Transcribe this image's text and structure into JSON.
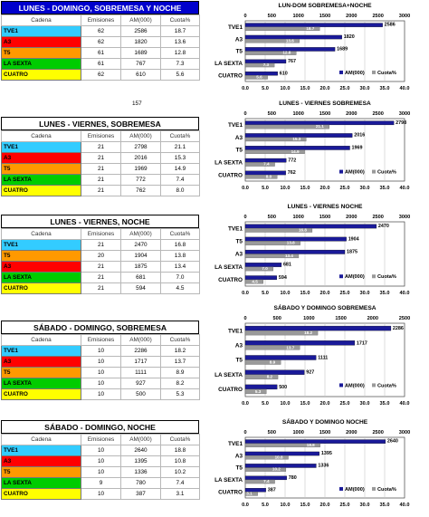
{
  "colors": {
    "TVE1": "#33ccff",
    "A3": "#ff0000",
    "T5": "#ff9900",
    "LA SEXTA": "#00cc00",
    "CUATRO": "#ffff00",
    "am_bar": "#1a1a99",
    "cuota_bar": "#9a9a9a"
  },
  "note": "157",
  "sections": [
    {
      "title": "LUNES - DOMINGO, SOBREMESA Y NOCHE",
      "title_style": "blue",
      "headers": [
        "Cadena",
        "Emisiones",
        "AM(000)",
        "Cuota%"
      ],
      "rows": [
        [
          "TVE1",
          "62",
          "2586",
          "18.7"
        ],
        [
          "A3",
          "62",
          "1820",
          "13.6"
        ],
        [
          "T5",
          "61",
          "1689",
          "12.8"
        ],
        [
          "LA SEXTA",
          "61",
          "767",
          "7.3"
        ],
        [
          "CUATRO",
          "62",
          "610",
          "5.6"
        ]
      ]
    },
    {
      "title": "LUNES - VIERNES, SOBREMESA",
      "title_style": "plain",
      "headers": [
        "Cadena",
        "Emisiones",
        "AM(000)",
        "Cuota%"
      ],
      "rows": [
        [
          "TVE1",
          "21",
          "2798",
          "21.1"
        ],
        [
          "A3",
          "21",
          "2016",
          "15.3"
        ],
        [
          "T5",
          "21",
          "1969",
          "14.9"
        ],
        [
          "LA SEXTA",
          "21",
          "772",
          "7.4"
        ],
        [
          "CUATRO",
          "21",
          "762",
          "8.0"
        ]
      ]
    },
    {
      "title": "LUNES - VIERNES, NOCHE",
      "title_style": "plain",
      "headers": [
        "Cadena",
        "Emisiones",
        "AM(000)",
        "Cuota%"
      ],
      "rows": [
        [
          "TVE1",
          "21",
          "2470",
          "16.8"
        ],
        [
          "T5",
          "20",
          "1904",
          "13.8"
        ],
        [
          "A3",
          "21",
          "1875",
          "13.4"
        ],
        [
          "LA SEXTA",
          "21",
          "681",
          "7.0"
        ],
        [
          "CUATRO",
          "21",
          "594",
          "4.5"
        ]
      ]
    },
    {
      "title": "SÁBADO - DOMINGO, SOBREMESA",
      "title_style": "plain",
      "headers": [
        "Cadena",
        "Emisiones",
        "AM(000)",
        "Cuota%"
      ],
      "rows": [
        [
          "TVE1",
          "10",
          "2286",
          "18.2"
        ],
        [
          "A3",
          "10",
          "1717",
          "13.7"
        ],
        [
          "T5",
          "10",
          "1111",
          "8.9"
        ],
        [
          "LA SEXTA",
          "10",
          "927",
          "8.2"
        ],
        [
          "CUATRO",
          "10",
          "500",
          "5.3"
        ]
      ]
    },
    {
      "title": "SÁBADO - DOMINGO, NOCHE",
      "title_style": "plain",
      "headers": [
        "Cadena",
        "Emisiones",
        "AM(000)",
        "Cuota%"
      ],
      "rows": [
        [
          "TVE1",
          "10",
          "2640",
          "18.8"
        ],
        [
          "A3",
          "10",
          "1395",
          "10.8"
        ],
        [
          "T5",
          "10",
          "1336",
          "10.2"
        ],
        [
          "LA SEXTA",
          "9",
          "780",
          "7.4"
        ],
        [
          "CUATRO",
          "10",
          "387",
          "3.1"
        ]
      ]
    }
  ],
  "chart_data": [
    {
      "type": "bar",
      "title": "LUN-DOM SOBREMESA+NOCHE",
      "categories": [
        "TVE1",
        "A3",
        "T5",
        "LA SEXTA",
        "CUATRO"
      ],
      "series": [
        {
          "name": "AM(000)",
          "values": [
            2586,
            1820,
            1689,
            767,
            610
          ]
        },
        {
          "name": "Cuota%",
          "values": [
            18.7,
            13.6,
            12.8,
            7.3,
            5.6
          ]
        }
      ],
      "x_top_ticks": [
        "0",
        "500",
        "1000",
        "1500",
        "2000",
        "2500",
        "3000"
      ],
      "x_bottom_ticks": [
        "0.0",
        "5.0",
        "10.0",
        "15.0",
        "20.0",
        "25.0",
        "30.0",
        "35.0",
        "40.0"
      ],
      "am_max": 3000,
      "cuota_max": 40,
      "legend": "bottom-right"
    },
    {
      "type": "bar",
      "title": "LUNES - VIERNES SOBREMESA",
      "categories": [
        "TVE1",
        "A3",
        "T5",
        "LA SEXTA",
        "CUATRO"
      ],
      "series": [
        {
          "name": "AM(000)",
          "values": [
            2798,
            2016,
            1969,
            772,
            762
          ]
        },
        {
          "name": "Cuota%",
          "values": [
            21.1,
            15.3,
            14.9,
            7.4,
            8.0
          ]
        }
      ],
      "x_top_ticks": [
        "0",
        "500",
        "1000",
        "1500",
        "2000",
        "2500",
        "3000"
      ],
      "x_bottom_ticks": [
        "0.0",
        "5.0",
        "10.0",
        "15.0",
        "20.0",
        "25.0",
        "30.0",
        "35.0",
        "40.0"
      ],
      "am_max": 3000,
      "cuota_max": 40,
      "legend": "bottom-right"
    },
    {
      "type": "bar",
      "title": "LUNES - VIERNES NOCHE",
      "categories": [
        "TVE1",
        "T5",
        "A3",
        "LA SEXTA",
        "CUATRO"
      ],
      "series": [
        {
          "name": "AM(000)",
          "values": [
            2470,
            1904,
            1875,
            681,
            594
          ]
        },
        {
          "name": "Cuota%",
          "values": [
            16.8,
            13.8,
            13.4,
            7.0,
            4.5
          ]
        }
      ],
      "x_top_ticks": [
        "0",
        "500",
        "1000",
        "1500",
        "2000",
        "2500",
        "3000"
      ],
      "x_bottom_ticks": [
        "0.0",
        "5.0",
        "10.0",
        "15.0",
        "20.0",
        "25.0",
        "30.0",
        "35.0",
        "40.0"
      ],
      "am_max": 3000,
      "cuota_max": 40,
      "legend": "bottom-right"
    },
    {
      "type": "bar",
      "title": "SÁBADO Y DOMINGO SOBREMESA",
      "categories": [
        "TVE1",
        "A3",
        "T5",
        "LA SEXTA",
        "CUATRO"
      ],
      "series": [
        {
          "name": "AM(000)",
          "values": [
            2286,
            1717,
            1111,
            927,
            500
          ]
        },
        {
          "name": "Cuota%",
          "values": [
            18.2,
            13.7,
            8.9,
            8.2,
            5.3
          ]
        }
      ],
      "x_top_ticks": [
        "0",
        "500",
        "1000",
        "1500",
        "2000",
        "2500"
      ],
      "x_bottom_ticks": [
        "0.0",
        "5.0",
        "10.0",
        "15.0",
        "20.0",
        "25.0",
        "30.0",
        "35.0",
        "40.0"
      ],
      "am_max": 2500,
      "cuota_max": 40,
      "legend": "bottom-right"
    },
    {
      "type": "bar",
      "title": "SÁBADO Y DOMINGO NOCHE",
      "categories": [
        "TVE1",
        "A3",
        "T5",
        "LA SEXTA",
        "CUATRO"
      ],
      "series": [
        {
          "name": "AM(000)",
          "values": [
            2640,
            1395,
            1336,
            780,
            387
          ]
        },
        {
          "name": "Cuota%",
          "values": [
            18.8,
            10.8,
            10.2,
            7.4,
            3.1
          ]
        }
      ],
      "x_top_ticks": [
        "0",
        "500",
        "1000",
        "1500",
        "2000",
        "2500",
        "3000"
      ],
      "x_bottom_ticks": [
        "0.0",
        "5.0",
        "10.0",
        "15.0",
        "20.0",
        "25.0",
        "30.0",
        "35.0",
        "40.0"
      ],
      "am_max": 3000,
      "cuota_max": 40,
      "legend": "bottom-right"
    }
  ]
}
